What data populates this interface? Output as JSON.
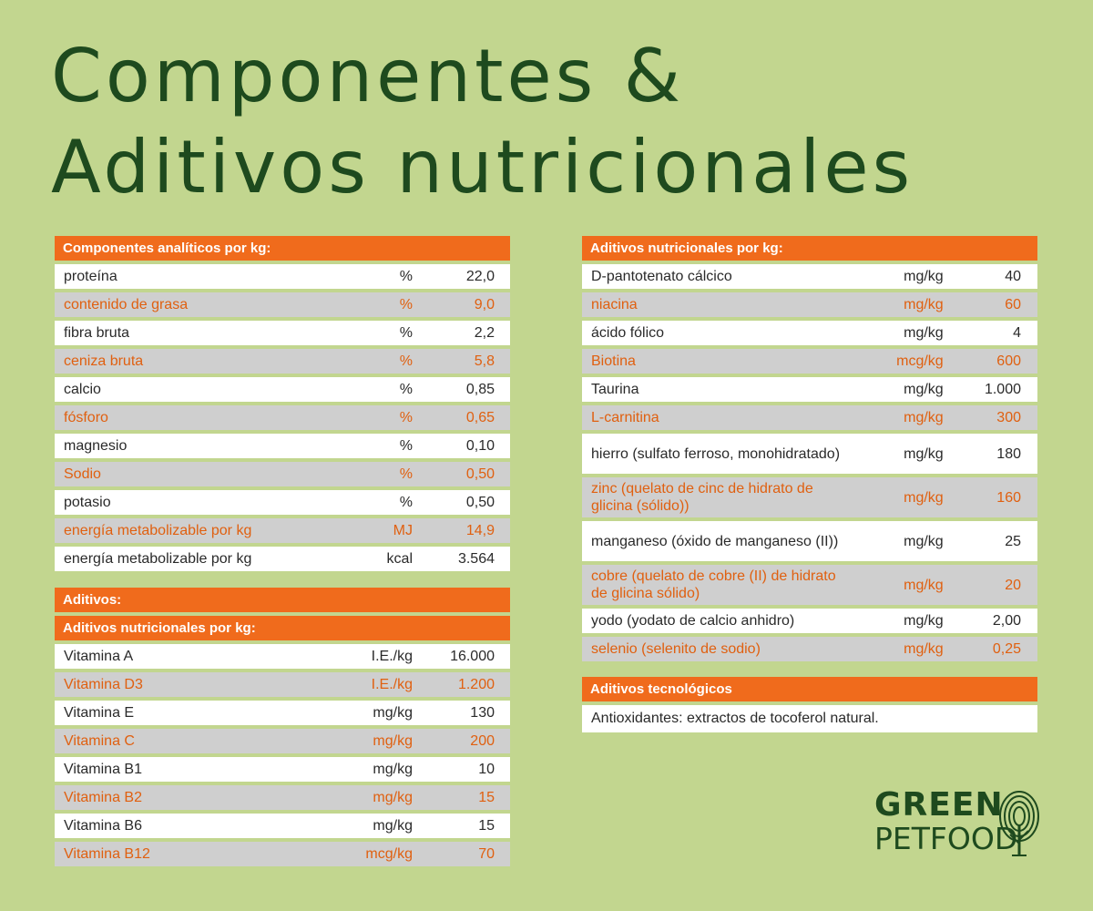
{
  "title": {
    "line1": "Componentes &",
    "line2": "Aditivos nutricionales"
  },
  "analytic": {
    "header": "Componentes analíticos por kg:",
    "rows": [
      {
        "name": "proteína",
        "unit": "%",
        "value": "22,0"
      },
      {
        "name": "contenido de grasa",
        "unit": "%",
        "value": "9,0"
      },
      {
        "name": "fibra bruta",
        "unit": "%",
        "value": "2,2"
      },
      {
        "name": "ceniza bruta",
        "unit": "%",
        "value": "5,8"
      },
      {
        "name": "calcio",
        "unit": "%",
        "value": "0,85"
      },
      {
        "name": "fósforo",
        "unit": "%",
        "value": "0,65"
      },
      {
        "name": "magnesio",
        "unit": "%",
        "value": "0,10"
      },
      {
        "name": "Sodio",
        "unit": "%",
        "value": "0,50"
      },
      {
        "name": "potasio",
        "unit": "%",
        "value": "0,50"
      },
      {
        "name": "energía metabolizable por kg",
        "unit": "MJ",
        "value": "14,9"
      },
      {
        "name": "energía metabolizable por kg",
        "unit": "kcal",
        "value": "3.564"
      }
    ]
  },
  "additives": {
    "header": "Aditivos:",
    "subheader": "Aditivos nutricionales por kg:",
    "rows": [
      {
        "name": "Vitamina A",
        "unit": "I.E./kg",
        "value": "16.000"
      },
      {
        "name": "Vitamina D3",
        "unit": "I.E./kg",
        "value": "1.200"
      },
      {
        "name": "Vitamina E",
        "unit": "mg/kg",
        "value": "130"
      },
      {
        "name": "Vitamina C",
        "unit": "mg/kg",
        "value": "200"
      },
      {
        "name": "Vitamina B1",
        "unit": "mg/kg",
        "value": "10"
      },
      {
        "name": "Vitamina B2",
        "unit": "mg/kg",
        "value": "15"
      },
      {
        "name": "Vitamina B6",
        "unit": "mg/kg",
        "value": "15"
      },
      {
        "name": "Vitamina B12",
        "unit": "mcg/kg",
        "value": "70"
      }
    ]
  },
  "nutritional": {
    "header": "Aditivos nutricionales por kg:",
    "rows": [
      {
        "name": "D-pantotenato cálcico",
        "unit": "mg/kg",
        "value": "40"
      },
      {
        "name": "niacina",
        "unit": "mg/kg",
        "value": "60"
      },
      {
        "name": "ácido fólico",
        "unit": "mg/kg",
        "value": "4"
      },
      {
        "name": "Biotina",
        "unit": "mcg/kg",
        "value": "600"
      },
      {
        "name": "Taurina",
        "unit": "mg/kg",
        "value": "1.000"
      },
      {
        "name": "L-carnitina",
        "unit": "mg/kg",
        "value": "300"
      },
      {
        "name": "hierro (sulfato ferroso, monohidratado)",
        "unit": "mg/kg",
        "value": "180"
      },
      {
        "name": "zinc (quelato de cinc de hidrato de glicina (sólido))",
        "unit": "mg/kg",
        "value": "160"
      },
      {
        "name": "manganeso (óxido de manganeso (II))",
        "unit": "mg/kg",
        "value": "25"
      },
      {
        "name": "cobre (quelato de cobre (II) de hidrato de glicina sólido)",
        "unit": "mg/kg",
        "value": "20"
      },
      {
        "name": "yodo (yodato de calcio anhidro)",
        "unit": "mg/kg",
        "value": "2,00"
      },
      {
        "name": "selenio (selenito de sodio)",
        "unit": "mg/kg",
        "value": "0,25"
      }
    ]
  },
  "technological": {
    "header": "Aditivos tecnológicos",
    "text": "Antioxidantes: extractos de tocoferol natural."
  },
  "logo": {
    "line1": "GREEN",
    "line2": "PETFOOD",
    "icon": "tree-fingerprint-icon"
  },
  "colors": {
    "background": "#c2d68f",
    "accent": "#f06b1c",
    "title": "#1e4a1e",
    "alt_row": "#cfcfcf"
  }
}
